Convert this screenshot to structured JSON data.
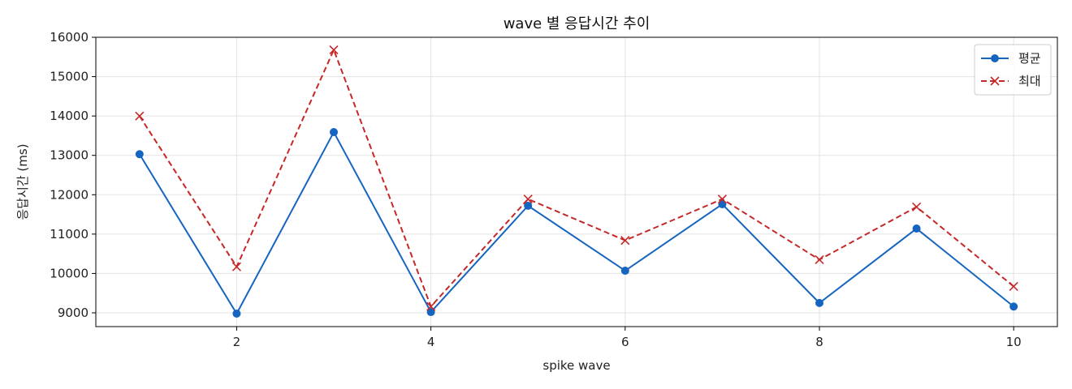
{
  "chart_data": {
    "type": "line",
    "title": "wave 별 응답시간 추이",
    "xlabel": "spike wave",
    "ylabel": "응답시간 (ms)",
    "x": [
      1,
      2,
      3,
      4,
      5,
      6,
      7,
      8,
      9,
      10
    ],
    "xticks": [
      2,
      4,
      6,
      8,
      10
    ],
    "yticks": [
      9000,
      10000,
      11000,
      12000,
      13000,
      14000,
      15000,
      16000
    ],
    "xlim": [
      0.55,
      10.45
    ],
    "ylim": [
      8650,
      16000
    ],
    "grid": true,
    "legend_position": "top-right",
    "series": [
      {
        "name": "평균",
        "color": "#1565c0",
        "marker": "circle",
        "line_style": "solid",
        "values": [
          13030,
          8980,
          13590,
          9020,
          11720,
          10070,
          11760,
          9250,
          11140,
          9160
        ]
      },
      {
        "name": "최대",
        "color": "#c62828",
        "marker": "x",
        "line_style": "dashed",
        "values": [
          14000,
          10170,
          15680,
          9160,
          11890,
          10840,
          11890,
          10350,
          11690,
          9670
        ]
      }
    ]
  }
}
